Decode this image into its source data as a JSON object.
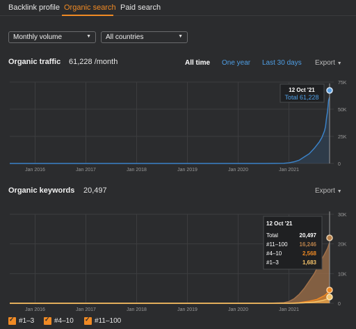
{
  "tabs": [
    {
      "label": "Backlink profile",
      "active": false
    },
    {
      "label": "Organic search",
      "active": true
    },
    {
      "label": "Paid search",
      "active": false
    }
  ],
  "filters": {
    "volume": "Monthly volume",
    "country": "All countries"
  },
  "traffic": {
    "title": "Organic traffic",
    "value": "61,228 /month",
    "range_links": [
      "All time",
      "One year",
      "Last 30 days"
    ],
    "export_label": "Export",
    "tooltip": {
      "date": "12 Oct '21",
      "total_label": "Total 61,228"
    }
  },
  "keywords": {
    "title": "Organic keywords",
    "value": "20,497",
    "export_label": "Export",
    "tooltip": {
      "date": "12 Oct '21",
      "rows": [
        {
          "label": "Total",
          "value": "20,497",
          "color": "#ffffff"
        },
        {
          "label": "#11–100",
          "value": "16,246",
          "color": "#b8804a"
        },
        {
          "label": "#4–10",
          "value": "2,568",
          "color": "#f08a24"
        },
        {
          "label": "#1–3",
          "value": "1,683",
          "color": "#f5c36a"
        }
      ]
    }
  },
  "legend": [
    {
      "label": "#1–3",
      "color": "#f08a24"
    },
    {
      "label": "#4–10",
      "color": "#f08a24"
    },
    {
      "label": "#11–100",
      "color": "#f08a24"
    }
  ],
  "colors": {
    "accent": "#f08a24",
    "traffic_line": "#3b82c8",
    "keywords_fill": "#a0704a"
  },
  "chart_data": [
    {
      "type": "area",
      "x_tick_labels": [
        "Jan 2016",
        "Jan 2017",
        "Jan 2018",
        "Jan 2019",
        "Jan 2020",
        "Jan 2021"
      ],
      "y_tick_labels": [
        "75K",
        "50K",
        "25K",
        "0"
      ],
      "ylim": [
        0,
        75000
      ],
      "series": [
        {
          "name": "Total",
          "points": [
            [
              2015.5,
              0
            ],
            [
              2020.5,
              0
            ],
            [
              2020.9,
              200
            ],
            [
              2021.0,
              600
            ],
            [
              2021.1,
              1500
            ],
            [
              2021.2,
              3000
            ],
            [
              2021.3,
              6000
            ],
            [
              2021.4,
              9000
            ],
            [
              2021.5,
              14000
            ],
            [
              2021.6,
              20000
            ],
            [
              2021.65,
              24000
            ],
            [
              2021.7,
              30000
            ],
            [
              2021.72,
              34000
            ],
            [
              2021.74,
              42000
            ],
            [
              2021.76,
              48000
            ],
            [
              2021.78,
              58000
            ],
            [
              2021.8,
              61228
            ]
          ]
        }
      ]
    },
    {
      "type": "area",
      "x_tick_labels": [
        "Jan 2016",
        "Jan 2017",
        "Jan 2018",
        "Jan 2019",
        "Jan 2020",
        "Jan 2021"
      ],
      "y_tick_labels": [
        "30K",
        "20K",
        "10K",
        "0"
      ],
      "ylim": [
        0,
        30000
      ],
      "series": [
        {
          "name": "#11–100",
          "points": [
            [
              2015.5,
              0
            ],
            [
              2020.6,
              0
            ],
            [
              2020.9,
              200
            ],
            [
              2021.0,
              600
            ],
            [
              2021.1,
              1500
            ],
            [
              2021.2,
              3000
            ],
            [
              2021.3,
              5000
            ],
            [
              2021.4,
              7500
            ],
            [
              2021.5,
              10000
            ],
            [
              2021.6,
              13500
            ],
            [
              2021.7,
              16500
            ],
            [
              2021.76,
              18500
            ],
            [
              2021.8,
              20497
            ]
          ]
        },
        {
          "name": "#4–10",
          "points": [
            [
              2015.5,
              0
            ],
            [
              2021.0,
              0
            ],
            [
              2021.2,
              200
            ],
            [
              2021.4,
              700
            ],
            [
              2021.55,
              1300
            ],
            [
              2021.7,
              2600
            ],
            [
              2021.76,
              3500
            ],
            [
              2021.8,
              4251
            ]
          ]
        },
        {
          "name": "#1–3",
          "points": [
            [
              2015.5,
              0
            ],
            [
              2021.1,
              0
            ],
            [
              2021.3,
              150
            ],
            [
              2021.5,
              450
            ],
            [
              2021.65,
              900
            ],
            [
              2021.8,
              1683
            ]
          ]
        }
      ]
    }
  ]
}
